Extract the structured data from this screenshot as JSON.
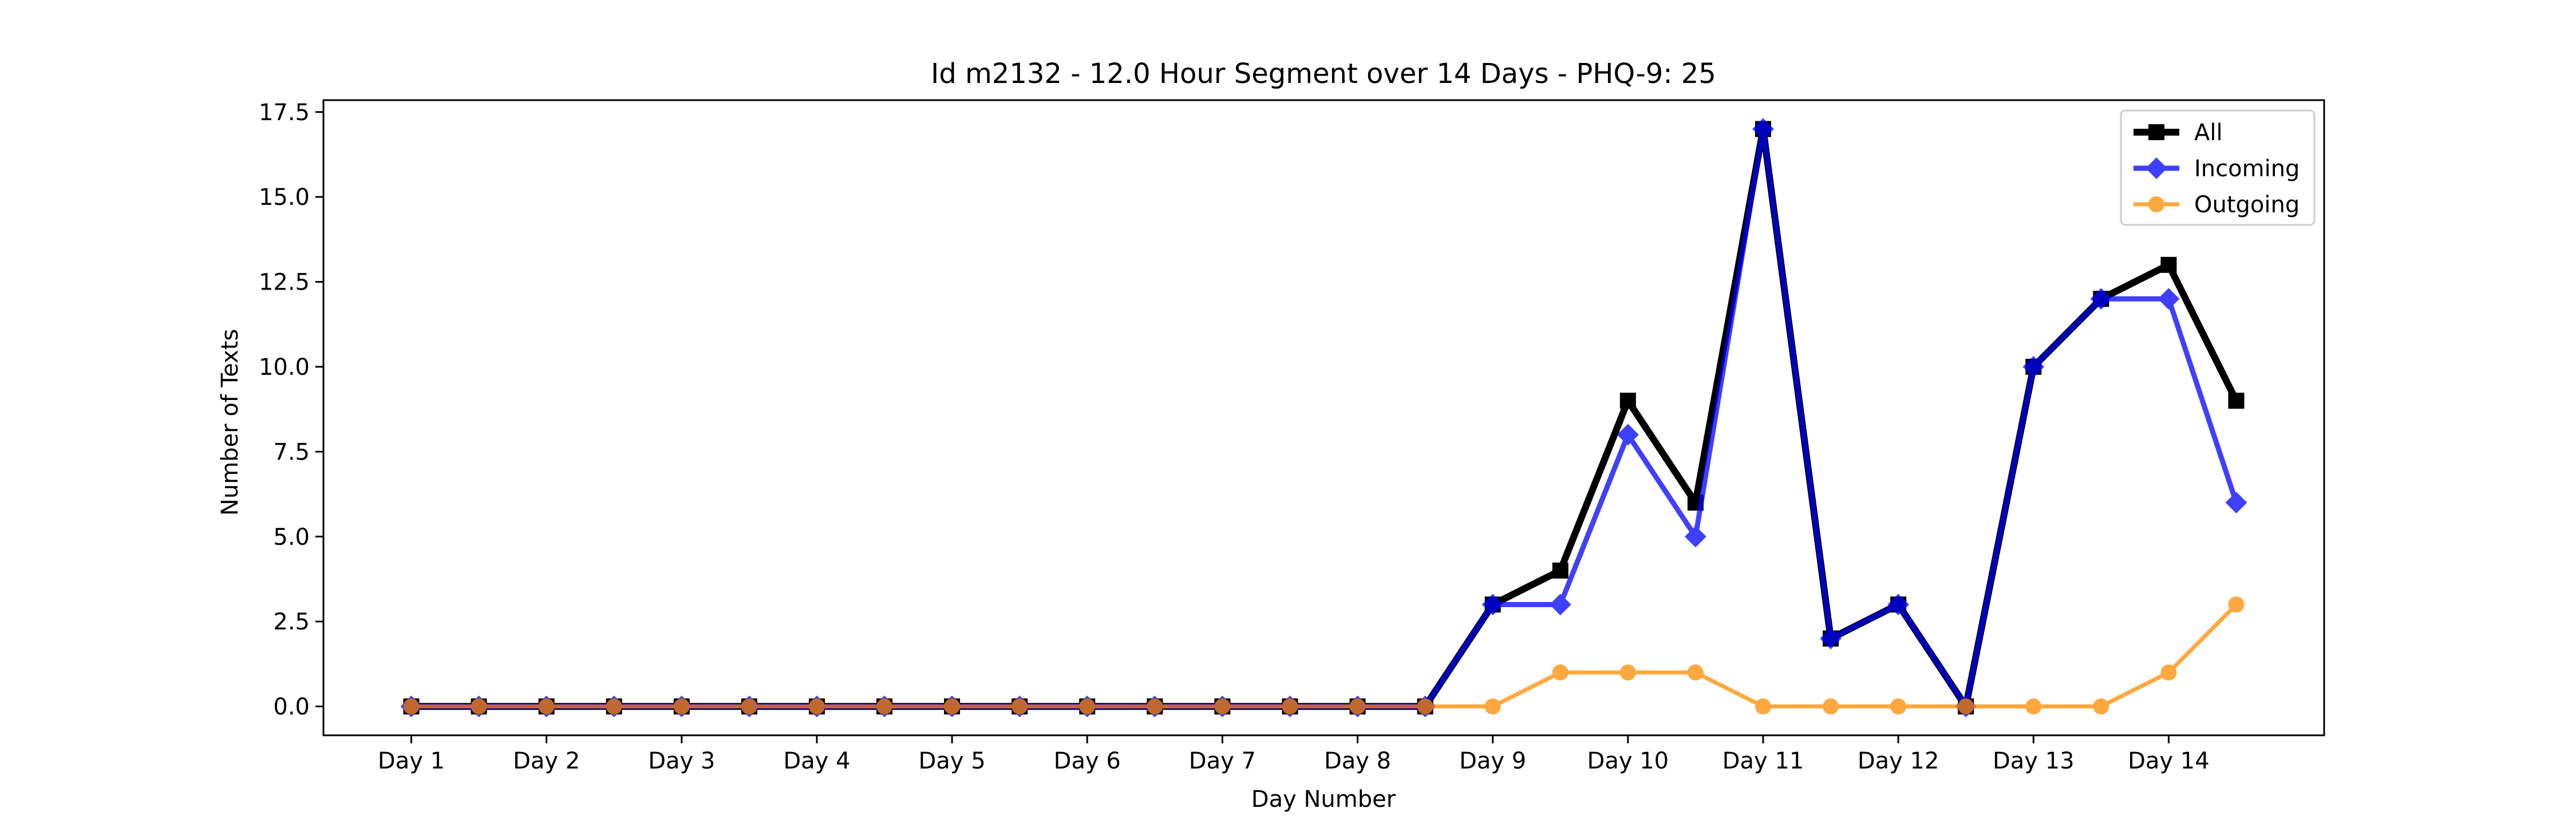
{
  "chart_data": {
    "type": "line",
    "title": "Id m2132 - 12.0 Hour Segment over 14 Days - PHQ-9: 25",
    "xlabel": "Day Number",
    "ylabel": "Number of Texts",
    "ylim": [
      -0.85,
      17.85
    ],
    "xlim": [
      -1.3,
      28.3
    ],
    "grid": false,
    "legend_position": "upper-right",
    "x_ticks": [
      {
        "x": 0,
        "label": "Day 1"
      },
      {
        "x": 2,
        "label": "Day 2"
      },
      {
        "x": 4,
        "label": "Day 3"
      },
      {
        "x": 6,
        "label": "Day 4"
      },
      {
        "x": 8,
        "label": "Day 5"
      },
      {
        "x": 10,
        "label": "Day 6"
      },
      {
        "x": 12,
        "label": "Day 7"
      },
      {
        "x": 14,
        "label": "Day 8"
      },
      {
        "x": 16,
        "label": "Day 9"
      },
      {
        "x": 18,
        "label": "Day 10"
      },
      {
        "x": 20,
        "label": "Day 11"
      },
      {
        "x": 22,
        "label": "Day 12"
      },
      {
        "x": 24,
        "label": "Day 13"
      },
      {
        "x": 26,
        "label": "Day 14"
      }
    ],
    "y_ticks": [
      {
        "y": 0,
        "label": "0.0"
      },
      {
        "y": 2.5,
        "label": "2.5"
      },
      {
        "y": 5,
        "label": "5.0"
      },
      {
        "y": 7.5,
        "label": "7.5"
      },
      {
        "y": 10,
        "label": "10.0"
      },
      {
        "y": 12.5,
        "label": "12.5"
      },
      {
        "y": 15,
        "label": "15.0"
      },
      {
        "y": 17.5,
        "label": "17.5"
      }
    ],
    "x": [
      0,
      1,
      2,
      3,
      4,
      5,
      6,
      7,
      8,
      9,
      10,
      11,
      12,
      13,
      14,
      15,
      16,
      17,
      18,
      19,
      20,
      21,
      22,
      23,
      24,
      25,
      26,
      27
    ],
    "series": [
      {
        "name": "All",
        "color": "#000000",
        "marker": "square",
        "opacity": 1.0,
        "values": [
          0,
          0,
          0,
          0,
          0,
          0,
          0,
          0,
          0,
          0,
          0,
          0,
          0,
          0,
          0,
          0,
          3,
          4,
          9,
          6,
          17,
          2,
          3,
          0,
          10,
          12,
          13,
          9
        ]
      },
      {
        "name": "Incoming",
        "color": "#0000ff",
        "marker": "diamond",
        "opacity": 0.75,
        "values": [
          0,
          0,
          0,
          0,
          0,
          0,
          0,
          0,
          0,
          0,
          0,
          0,
          0,
          0,
          0,
          0,
          3,
          3,
          8,
          5,
          17,
          2,
          3,
          0,
          10,
          12,
          12,
          6
        ]
      },
      {
        "name": "Outgoing",
        "color": "#ff8c00",
        "marker": "circle",
        "opacity": 0.75,
        "values": [
          0,
          0,
          0,
          0,
          0,
          0,
          0,
          0,
          0,
          0,
          0,
          0,
          0,
          0,
          0,
          0,
          0,
          1,
          1,
          1,
          0,
          0,
          0,
          0,
          0,
          0,
          1,
          3
        ]
      }
    ]
  }
}
